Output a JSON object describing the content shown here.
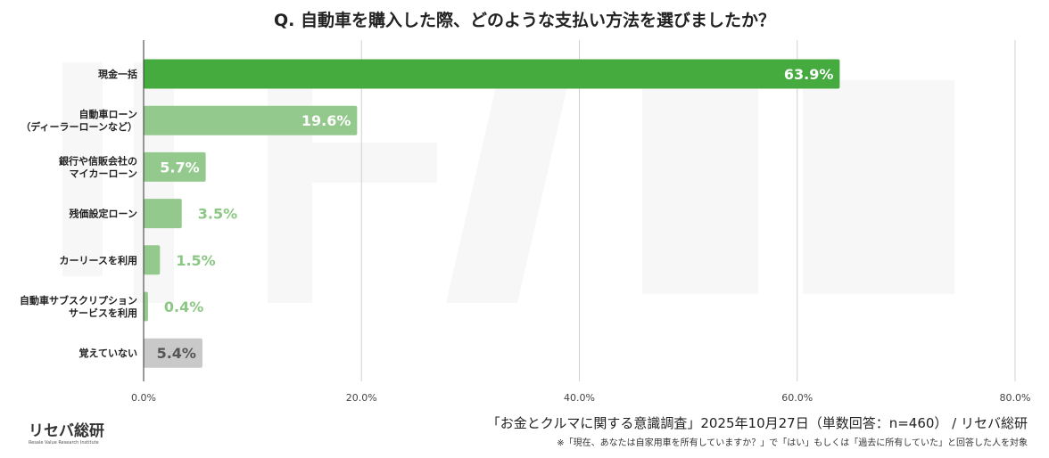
{
  "chart_data": {
    "type": "bar",
    "orientation": "horizontal",
    "title": "Q. 自動車を購入した際、どのような支払い方法を選びましたか？",
    "categories": [
      [
        "現金一括"
      ],
      [
        "自動車ローン",
        "（ディーラーローンなど）"
      ],
      [
        "銀行や信販会社の",
        "マイカーローン"
      ],
      [
        "残価設定ローン"
      ],
      [
        "カーリースを利用"
      ],
      [
        "自動車サブスクリプション",
        "サービスを利用"
      ],
      [
        "覚えていない"
      ]
    ],
    "values": [
      63.9,
      19.6,
      5.7,
      3.5,
      1.5,
      0.4,
      5.4
    ],
    "data_labels": [
      "63.9%",
      "19.6%",
      "5.7%",
      "3.5%",
      "1.5%",
      "0.4%",
      "5.4%"
    ],
    "xlim": [
      0,
      80
    ],
    "xticks": [
      "0.0%",
      "20.0%",
      "40.0%",
      "60.0%",
      "80.0%"
    ],
    "grid": true,
    "colors": {
      "primary": "#45ab3f",
      "secondary": "#93c98d",
      "other": "#c9c9c9",
      "label_outside": "#8cc785",
      "label_other": "#555555"
    }
  },
  "watermark": {
    "logo": "リセバ総研",
    "sub": "Resale Value Research Institute"
  },
  "footer": {
    "source": "「お金とクルマに関する意識調査」2025年10月27日（単数回答：n=460） / リセバ総研",
    "note": "※「現在、あなたは自家用車を所有していますか？」で「はい」もしくは「過去に所有していた」と回答した人を対象",
    "logo": "リセバ総研",
    "logo_sub": "Resale Value Research Institute"
  }
}
